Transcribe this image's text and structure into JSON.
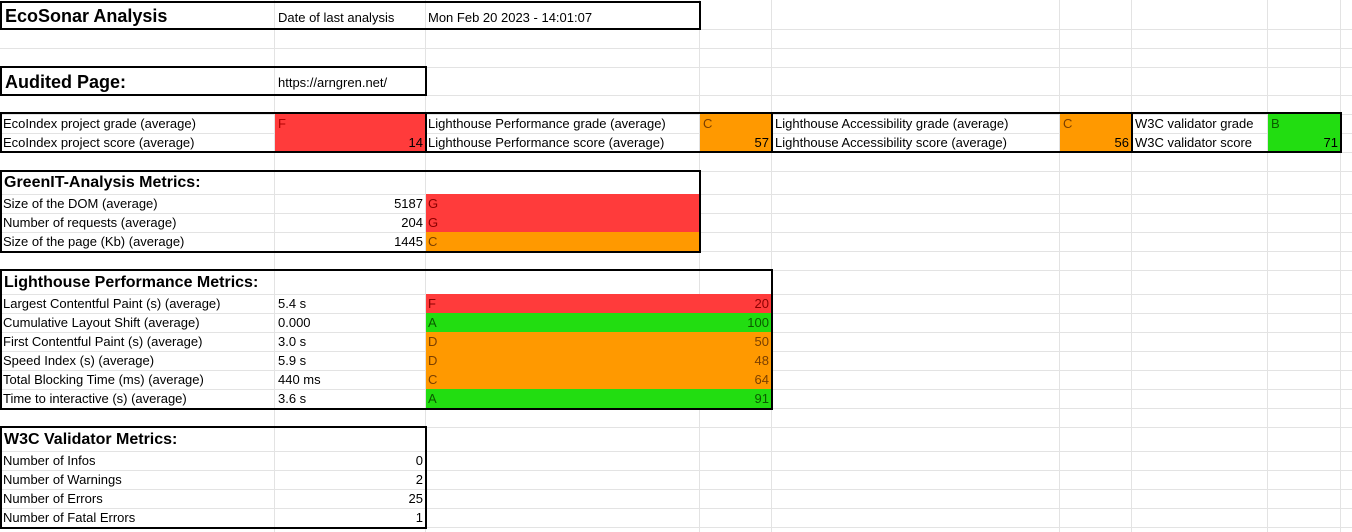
{
  "colors": {
    "red": "#ff3b3b",
    "orange": "#ff9900",
    "green": "#22dd11"
  },
  "title": "EcoSonar Analysis",
  "date_label": "Date of last analysis",
  "date_value": "Mon Feb 20 2023 - 14:01:07",
  "audited_label": "Audited Page:",
  "audited_url": "https://arngren.net/",
  "summary": {
    "ecoindex_grade_label": "EcoIndex project grade (average)",
    "ecoindex_grade": "F",
    "ecoindex_score_label": "EcoIndex project score (average)",
    "ecoindex_score": "14",
    "lh_perf_grade_label": "Lighthouse Performance grade (average)",
    "lh_perf_grade": "C",
    "lh_perf_score_label": "Lighthouse Performance score (average)",
    "lh_perf_score": "57",
    "lh_acc_grade_label": "Lighthouse Accessibility grade (average)",
    "lh_acc_grade": "C",
    "lh_acc_score_label": "Lighthouse Accessibility score (average)",
    "lh_acc_score": "56",
    "w3c_grade_label": "W3C validator grade",
    "w3c_grade": "B",
    "w3c_score_label": "W3C validator score",
    "w3c_score": "71"
  },
  "greenit": {
    "title": "GreenIT-Analysis Metrics:",
    "rows": [
      {
        "label": "Size of the DOM (average)",
        "value": "5187",
        "grade": "G"
      },
      {
        "label": "Number of requests (average)",
        "value": "204",
        "grade": "G"
      },
      {
        "label": "Size of the page (Kb) (average)",
        "value": "1445",
        "grade": "C"
      }
    ]
  },
  "lighthouse": {
    "title": "Lighthouse Performance Metrics:",
    "rows": [
      {
        "label": "Largest Contentful Paint (s) (average)",
        "value": "5.4 s",
        "grade": "F",
        "score": "20"
      },
      {
        "label": "Cumulative Layout Shift (average)",
        "value": "0.000",
        "grade": "A",
        "score": "100"
      },
      {
        "label": "First Contentful Paint (s) (average)",
        "value": "3.0 s",
        "grade": "D",
        "score": "50"
      },
      {
        "label": "Speed Index (s) (average)",
        "value": "5.9 s",
        "grade": "D",
        "score": "48"
      },
      {
        "label": "Total Blocking Time (ms) (average)",
        "value": "440 ms",
        "grade": "C",
        "score": "64"
      },
      {
        "label": "Time to interactive (s) (average)",
        "value": "3.6 s",
        "grade": "A",
        "score": "91"
      }
    ]
  },
  "w3c": {
    "title": "W3C Validator Metrics:",
    "rows": [
      {
        "label": "Number of Infos",
        "value": "0"
      },
      {
        "label": "Number of Warnings",
        "value": "2"
      },
      {
        "label": "Number of Errors",
        "value": "25"
      },
      {
        "label": "Number of Fatal Errors",
        "value": "1"
      }
    ]
  }
}
